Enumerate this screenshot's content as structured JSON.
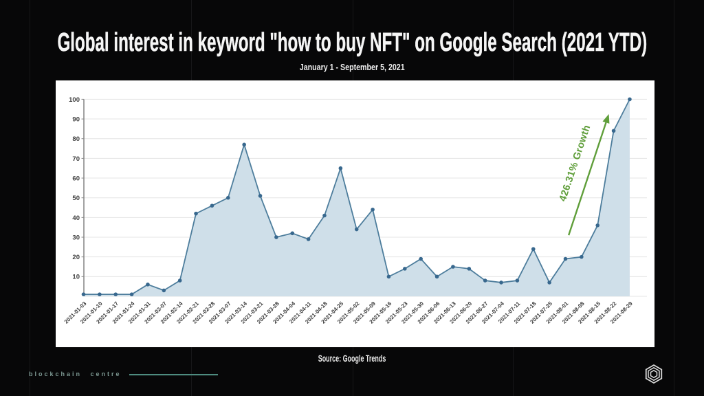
{
  "page": {
    "title": "Global interest in keyword \"how to buy NFT\" on Google Search (2021 YTD)",
    "subtitle": "January 1 - September 5, 2021",
    "source": "Source: Google Trends",
    "footer_brand": "blockchain centre"
  },
  "colors": {
    "background": "#070708",
    "card": "#ffffff",
    "line": "#4d7d9c",
    "marker": "#38688e",
    "area_fill": "#cfdfe9",
    "gridline": "#e4e4e4",
    "axis": "#8a8a8a",
    "tick_label": "#3e3e3e",
    "annotation_green": "#5f9e3a",
    "brand_teal": "#7e9a94",
    "icon_gray": "#d9d9d9"
  },
  "chart_data": {
    "type": "area",
    "title": "Global interest in keyword \"how to buy NFT\" on Google Search (2021 YTD)",
    "xlabel": "",
    "ylabel": "",
    "ylim": [
      0,
      100
    ],
    "yticks": [
      10,
      20,
      30,
      40,
      50,
      60,
      70,
      80,
      90,
      100
    ],
    "grid": true,
    "legend": false,
    "categories": [
      "2021-01-03",
      "2021-01-10",
      "2021-01-17",
      "2021-01-24",
      "2021-01-31",
      "2021-02-07",
      "2021-02-14",
      "2021-02-21",
      "2021-02-28",
      "2021-03-07",
      "2021-03-14",
      "2021-03-21",
      "2021-03-28",
      "2021-04-04",
      "2021-04-11",
      "2021-04-18",
      "2021-04-25",
      "2021-05-02",
      "2021-05-09",
      "2021-05-16",
      "2021-05-23",
      "2021-05-30",
      "2021-06-06",
      "2021-06-13",
      "2021-06-20",
      "2021-06-27",
      "2021-07-04",
      "2021-07-11",
      "2021-07-18",
      "2021-07-25",
      "2021-08-01",
      "2021-08-08",
      "2021-08-15",
      "2021-08-22",
      "2021-08-29"
    ],
    "values": [
      1,
      1,
      1,
      1,
      6,
      3,
      8,
      42,
      46,
      50,
      77,
      51,
      30,
      32,
      29,
      41,
      65,
      34,
      44,
      10,
      14,
      19,
      10,
      15,
      14,
      8,
      7,
      8,
      24,
      7,
      19,
      20,
      36,
      84,
      100
    ],
    "annotation": {
      "text": "426.31% Growth",
      "arrow_from": {
        "index": 30.2,
        "value": 31
      },
      "arrow_to": {
        "index": 32.7,
        "value": 92.5
      }
    }
  }
}
